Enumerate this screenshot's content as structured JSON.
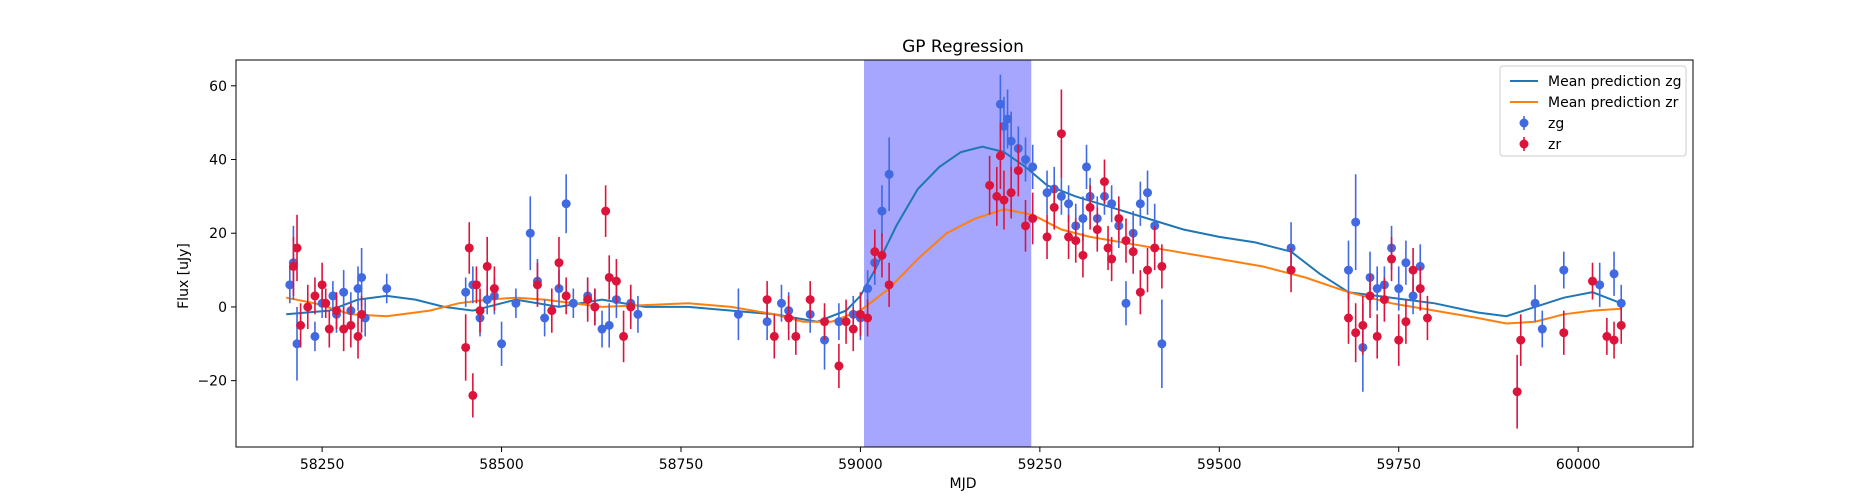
{
  "chart_data": {
    "type": "scatter",
    "title": "GP Regression",
    "xlabel": "MJD",
    "ylabel": "Flux [uJy]",
    "xlim": [
      58130,
      60160
    ],
    "ylim": [
      -38,
      67
    ],
    "xticks": [
      58250,
      58500,
      58750,
      59000,
      59250,
      59500,
      59750,
      60000
    ],
    "yticks": [
      -20,
      0,
      20,
      40,
      60
    ],
    "grid": false,
    "legend_position": "top-right",
    "shaded_region": {
      "x_start": 59005,
      "x_end": 59238,
      "color": "#a6a6ff"
    },
    "series": [
      {
        "name": "Mean prediction zg",
        "kind": "line",
        "color": "#1f77b4",
        "points": [
          [
            58200,
            -2
          ],
          [
            58260,
            -1
          ],
          [
            58300,
            2
          ],
          [
            58340,
            3
          ],
          [
            58380,
            2
          ],
          [
            58420,
            0
          ],
          [
            58460,
            -1
          ],
          [
            58520,
            2
          ],
          [
            58580,
            0
          ],
          [
            58640,
            2
          ],
          [
            58700,
            0
          ],
          [
            58760,
            0
          ],
          [
            58820,
            -1
          ],
          [
            58880,
            -2
          ],
          [
            58940,
            -4
          ],
          [
            58980,
            -1
          ],
          [
            59000,
            3
          ],
          [
            59020,
            10
          ],
          [
            59050,
            22
          ],
          [
            59080,
            32
          ],
          [
            59110,
            38
          ],
          [
            59140,
            42
          ],
          [
            59170,
            43.5
          ],
          [
            59200,
            42
          ],
          [
            59230,
            38
          ],
          [
            59260,
            33
          ],
          [
            59300,
            30
          ],
          [
            59350,
            27
          ],
          [
            59400,
            24
          ],
          [
            59450,
            21
          ],
          [
            59500,
            19
          ],
          [
            59550,
            17.5
          ],
          [
            59600,
            15
          ],
          [
            59640,
            9
          ],
          [
            59680,
            4
          ],
          [
            59720,
            3
          ],
          [
            59760,
            2
          ],
          [
            59800,
            1
          ],
          [
            59860,
            -1.5
          ],
          [
            59900,
            -2.5
          ],
          [
            59940,
            0
          ],
          [
            59980,
            2.5
          ],
          [
            60020,
            4
          ],
          [
            60060,
            1
          ]
        ]
      },
      {
        "name": "Mean prediction zr",
        "kind": "line",
        "color": "#ff7f0e",
        "points": [
          [
            58200,
            2.5
          ],
          [
            58240,
            1
          ],
          [
            58290,
            -2
          ],
          [
            58340,
            -2.5
          ],
          [
            58400,
            -1
          ],
          [
            58440,
            1
          ],
          [
            58480,
            2
          ],
          [
            58520,
            2.5
          ],
          [
            58560,
            2
          ],
          [
            58600,
            1
          ],
          [
            58640,
            0
          ],
          [
            58700,
            0.5
          ],
          [
            58760,
            1
          ],
          [
            58820,
            0
          ],
          [
            58880,
            -2
          ],
          [
            58920,
            -4
          ],
          [
            58960,
            -4
          ],
          [
            59000,
            -1
          ],
          [
            59040,
            5
          ],
          [
            59080,
            13
          ],
          [
            59120,
            20
          ],
          [
            59160,
            24
          ],
          [
            59200,
            26.5
          ],
          [
            59240,
            25
          ],
          [
            59280,
            21
          ],
          [
            59320,
            19
          ],
          [
            59380,
            17
          ],
          [
            59440,
            15
          ],
          [
            59500,
            13
          ],
          [
            59560,
            11
          ],
          [
            59620,
            8
          ],
          [
            59680,
            4
          ],
          [
            59740,
            1
          ],
          [
            59800,
            -1
          ],
          [
            59860,
            -3
          ],
          [
            59900,
            -4.5
          ],
          [
            59940,
            -4
          ],
          [
            59980,
            -2
          ],
          [
            60020,
            -1
          ],
          [
            60060,
            -0.5
          ]
        ]
      },
      {
        "name": "zg",
        "kind": "errorbar",
        "color": "#4169e1",
        "points": [
          [
            58205,
            6,
            5
          ],
          [
            58210,
            12,
            10
          ],
          [
            58215,
            -10,
            10
          ],
          [
            58240,
            -8,
            4
          ],
          [
            58250,
            1,
            4
          ],
          [
            58265,
            3,
            4
          ],
          [
            58270,
            -2,
            5
          ],
          [
            58280,
            4,
            6
          ],
          [
            58290,
            -1,
            5
          ],
          [
            58300,
            5,
            6
          ],
          [
            58305,
            8,
            8
          ],
          [
            58310,
            -3,
            5
          ],
          [
            58340,
            5,
            4
          ],
          [
            58450,
            4,
            4
          ],
          [
            58460,
            6,
            5
          ],
          [
            58470,
            -3,
            5
          ],
          [
            58480,
            2,
            4
          ],
          [
            58490,
            3,
            5
          ],
          [
            58500,
            -10,
            6
          ],
          [
            58520,
            1,
            4
          ],
          [
            58540,
            20,
            10
          ],
          [
            58550,
            7,
            6
          ],
          [
            58560,
            -3,
            5
          ],
          [
            58580,
            5,
            5
          ],
          [
            58590,
            28,
            8
          ],
          [
            58600,
            1,
            4
          ],
          [
            58620,
            3,
            5
          ],
          [
            58630,
            0,
            5
          ],
          [
            58640,
            -6,
            5
          ],
          [
            58650,
            -5,
            6
          ],
          [
            58660,
            2,
            5
          ],
          [
            58680,
            1,
            5
          ],
          [
            58690,
            -2,
            5
          ],
          [
            58830,
            -2,
            7
          ],
          [
            58870,
            -4,
            5
          ],
          [
            58890,
            1,
            5
          ],
          [
            58900,
            -1,
            5
          ],
          [
            58930,
            -2,
            5
          ],
          [
            58950,
            -9,
            8
          ],
          [
            58970,
            -4,
            5
          ],
          [
            58990,
            -2,
            5
          ],
          [
            59000,
            -3,
            6
          ],
          [
            59010,
            5,
            5
          ],
          [
            59020,
            12,
            6
          ],
          [
            59030,
            26,
            7
          ],
          [
            59040,
            36,
            10
          ],
          [
            59195,
            55,
            8
          ],
          [
            59200,
            49,
            8
          ],
          [
            59205,
            51,
            8
          ],
          [
            59210,
            45,
            8
          ],
          [
            59220,
            43,
            6
          ],
          [
            59230,
            40,
            6
          ],
          [
            59240,
            38,
            6
          ],
          [
            59260,
            31,
            6
          ],
          [
            59270,
            32,
            6
          ],
          [
            59280,
            30,
            5
          ],
          [
            59290,
            28,
            5
          ],
          [
            59300,
            22,
            6
          ],
          [
            59310,
            24,
            6
          ],
          [
            59315,
            38,
            6
          ],
          [
            59320,
            30,
            5
          ],
          [
            59330,
            24,
            6
          ],
          [
            59340,
            30,
            5
          ],
          [
            59350,
            28,
            5
          ],
          [
            59360,
            22,
            6
          ],
          [
            59370,
            1,
            6
          ],
          [
            59380,
            20,
            6
          ],
          [
            59390,
            28,
            6
          ],
          [
            59400,
            31,
            6
          ],
          [
            59410,
            22,
            6
          ],
          [
            59420,
            -10,
            12
          ],
          [
            59600,
            16,
            7
          ],
          [
            59680,
            10,
            8
          ],
          [
            59690,
            23,
            13
          ],
          [
            59700,
            -11,
            12
          ],
          [
            59710,
            8,
            7
          ],
          [
            59720,
            5,
            6
          ],
          [
            59730,
            6,
            5
          ],
          [
            59740,
            16,
            6
          ],
          [
            59750,
            5,
            6
          ],
          [
            59760,
            12,
            6
          ],
          [
            59770,
            3,
            5
          ],
          [
            59780,
            11,
            6
          ],
          [
            59940,
            1,
            5
          ],
          [
            59950,
            -6,
            5
          ],
          [
            59980,
            10,
            5
          ],
          [
            60030,
            6,
            6
          ],
          [
            60050,
            9,
            6
          ],
          [
            60060,
            1,
            5
          ]
        ]
      },
      {
        "name": "zr",
        "kind": "errorbar",
        "color": "#dc143c",
        "points": [
          [
            58210,
            11,
            8
          ],
          [
            58215,
            16,
            9
          ],
          [
            58220,
            -5,
            6
          ],
          [
            58230,
            0,
            6
          ],
          [
            58240,
            3,
            5
          ],
          [
            58250,
            6,
            6
          ],
          [
            58255,
            1,
            4
          ],
          [
            58260,
            -6,
            5
          ],
          [
            58270,
            -1,
            5
          ],
          [
            58280,
            -6,
            6
          ],
          [
            58290,
            -5,
            6
          ],
          [
            58300,
            -8,
            6
          ],
          [
            58305,
            -2,
            5
          ],
          [
            58450,
            -11,
            9
          ],
          [
            58455,
            16,
            7
          ],
          [
            58460,
            -24,
            6
          ],
          [
            58465,
            6,
            5
          ],
          [
            58470,
            -1,
            6
          ],
          [
            58480,
            11,
            8
          ],
          [
            58490,
            5,
            6
          ],
          [
            58550,
            6,
            6
          ],
          [
            58570,
            -1,
            6
          ],
          [
            58580,
            12,
            7
          ],
          [
            58590,
            3,
            5
          ],
          [
            58620,
            2,
            6
          ],
          [
            58630,
            0,
            5
          ],
          [
            58645,
            26,
            7
          ],
          [
            58650,
            8,
            6
          ],
          [
            58660,
            7,
            6
          ],
          [
            58670,
            -8,
            7
          ],
          [
            58680,
            0,
            6
          ],
          [
            58870,
            2,
            5
          ],
          [
            58880,
            -8,
            6
          ],
          [
            58900,
            -3,
            6
          ],
          [
            58910,
            -8,
            5
          ],
          [
            58930,
            2,
            5
          ],
          [
            58950,
            -4,
            5
          ],
          [
            58970,
            -16,
            6
          ],
          [
            58980,
            -4,
            6
          ],
          [
            58990,
            -6,
            6
          ],
          [
            59000,
            -2,
            6
          ],
          [
            59010,
            -3,
            5
          ],
          [
            59020,
            15,
            6
          ],
          [
            59030,
            14,
            6
          ],
          [
            59040,
            6,
            6
          ],
          [
            59180,
            33,
            8
          ],
          [
            59190,
            30,
            8
          ],
          [
            59195,
            41,
            9
          ],
          [
            59200,
            29,
            8
          ],
          [
            59210,
            31,
            7
          ],
          [
            59220,
            37,
            7
          ],
          [
            59230,
            22,
            7
          ],
          [
            59240,
            24,
            7
          ],
          [
            59260,
            19,
            6
          ],
          [
            59270,
            27,
            6
          ],
          [
            59280,
            47,
            12
          ],
          [
            59290,
            19,
            6
          ],
          [
            59300,
            18,
            6
          ],
          [
            59310,
            14,
            6
          ],
          [
            59320,
            27,
            6
          ],
          [
            59330,
            21,
            6
          ],
          [
            59340,
            34,
            6
          ],
          [
            59345,
            16,
            6
          ],
          [
            59350,
            13,
            6
          ],
          [
            59360,
            24,
            6
          ],
          [
            59370,
            18,
            6
          ],
          [
            59380,
            15,
            6
          ],
          [
            59390,
            4,
            6
          ],
          [
            59400,
            10,
            6
          ],
          [
            59410,
            16,
            6
          ],
          [
            59420,
            11,
            6
          ],
          [
            59600,
            10,
            6
          ],
          [
            59680,
            -3,
            7
          ],
          [
            59690,
            -7,
            8
          ],
          [
            59700,
            -5,
            8
          ],
          [
            59710,
            3,
            6
          ],
          [
            59720,
            -8,
            6
          ],
          [
            59730,
            2,
            6
          ],
          [
            59740,
            13,
            6
          ],
          [
            59750,
            -9,
            7
          ],
          [
            59760,
            -4,
            6
          ],
          [
            59770,
            10,
            6
          ],
          [
            59780,
            5,
            6
          ],
          [
            59790,
            -3,
            6
          ],
          [
            59915,
            -23,
            10
          ],
          [
            59920,
            -9,
            7
          ],
          [
            59980,
            -7,
            6
          ],
          [
            60020,
            7,
            5
          ],
          [
            60040,
            -8,
            5
          ],
          [
            60050,
            -9,
            5
          ],
          [
            60060,
            -5,
            5
          ]
        ]
      }
    ]
  }
}
